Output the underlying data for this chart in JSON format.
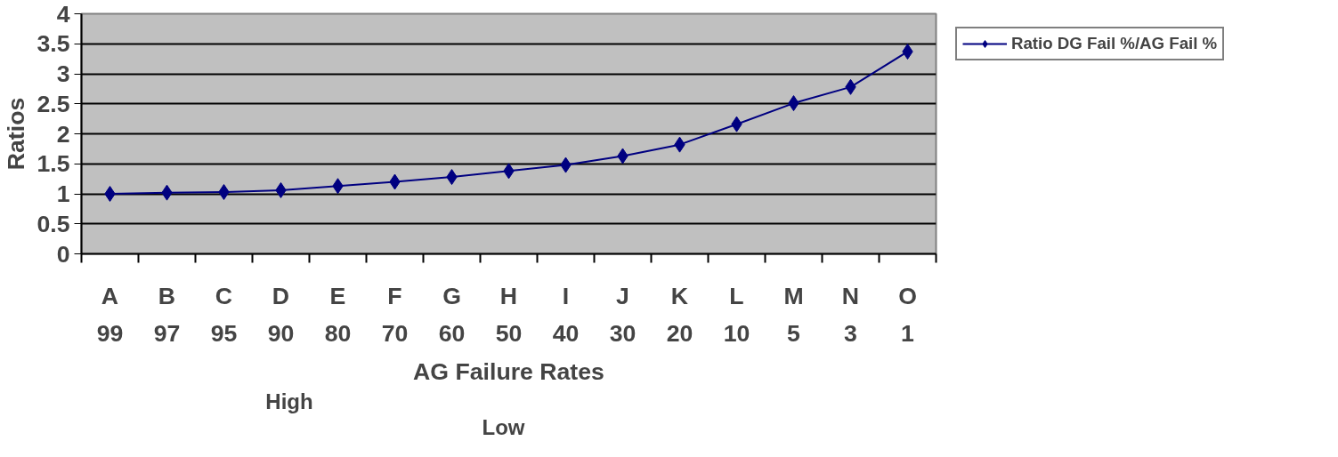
{
  "chart_data": {
    "type": "line",
    "xlabel": "AG Failure Rates",
    "ylabel": "Ratios",
    "categories": [
      "A\n99",
      "B\n97",
      "C\n95",
      "D\n90",
      "E\n80",
      "F\n70",
      "G\n60",
      "H\n50",
      "I\n40",
      "J\n30",
      "K\n20",
      "L\n10",
      "M\n5",
      "N\n3",
      "O\n1"
    ],
    "series": [
      {
        "name": "Ratio DG Fail %/AG Fail %",
        "color": "#000080",
        "values": [
          1.0,
          1.02,
          1.03,
          1.06,
          1.13,
          1.2,
          1.28,
          1.38,
          1.48,
          1.63,
          1.82,
          2.16,
          2.51,
          2.78,
          3.37
        ]
      }
    ],
    "ylim": [
      0,
      4
    ],
    "yticks": [
      0,
      0.5,
      1,
      1.5,
      2,
      2.5,
      3,
      3.5,
      4
    ],
    "annotations": [
      "High",
      "Low"
    ],
    "grid": "y",
    "legend": "right",
    "marker": "diamond",
    "line_style": "solid"
  }
}
